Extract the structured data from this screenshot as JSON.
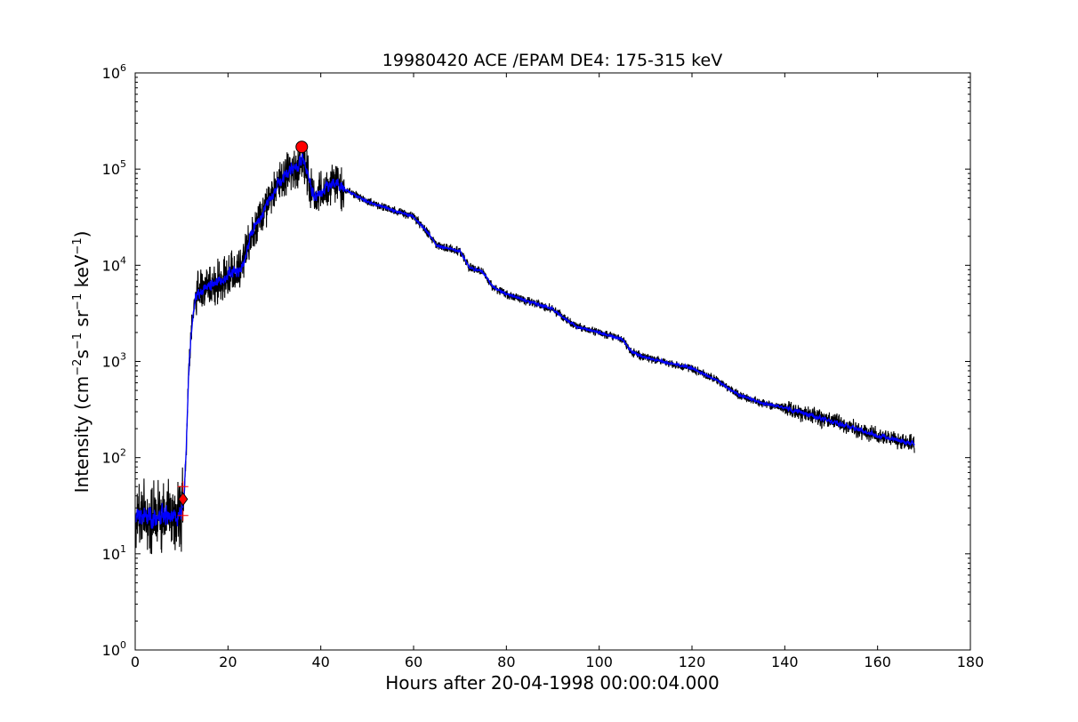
{
  "chart_data": {
    "type": "line",
    "title": "19980420 ACE /EPAM DE4: 175-315 keV",
    "xlabel": "Hours after 20-04-1998 00:00:04.000",
    "ylabel_parts": {
      "pre": "Intensity (cm",
      "exp1": "−2",
      "mid1": "s",
      "exp2": "−1",
      "mid2": " sr",
      "exp3": "−1",
      "mid3": " keV",
      "exp4": "−1",
      "post": ")"
    },
    "xlim": [
      0,
      180
    ],
    "ylim": [
      1,
      1000000
    ],
    "yscale": "log",
    "grid": false,
    "x_ticks": [
      "0",
      "20",
      "40",
      "60",
      "80",
      "100",
      "120",
      "140",
      "160",
      "180"
    ],
    "y_tick_mantissa": "10",
    "y_tick_exponents": [
      "0",
      "1",
      "2",
      "3",
      "4",
      "5",
      "6"
    ],
    "colors": {
      "raw": "#000000",
      "smoothed": "#0000ff",
      "markers": "#ff0000"
    },
    "series": [
      {
        "name": "",
        "style": "raw-black",
        "x": [
          0,
          2,
          4,
          6,
          8,
          10,
          10.5,
          11,
          11.5,
          12,
          13,
          15,
          17,
          19,
          21,
          23,
          25,
          27,
          29,
          31,
          33,
          35,
          36,
          37,
          38,
          39,
          40,
          41,
          43,
          45,
          50,
          55,
          60,
          63,
          65,
          70,
          72,
          75,
          77,
          80,
          90,
          95,
          100,
          105,
          107,
          110,
          120,
          125,
          130,
          135,
          140,
          145,
          150,
          155,
          160,
          165,
          168
        ],
        "y": [
          25,
          24,
          23,
          25,
          24,
          26,
          36,
          120,
          700,
          1800,
          4800,
          5800,
          6500,
          7000,
          8500,
          9000,
          21000,
          32000,
          48000,
          72000,
          92000,
          105000,
          130000,
          95000,
          58000,
          50000,
          55000,
          65000,
          70000,
          62000,
          46000,
          38000,
          32000,
          22000,
          16000,
          14000,
          9500,
          8500,
          6000,
          5000,
          3500,
          2300,
          2000,
          1700,
          1250,
          1100,
          850,
          650,
          450,
          370,
          330,
          280,
          240,
          200,
          170,
          150,
          140
        ]
      },
      {
        "name": "",
        "style": "smoothed-blue",
        "x": [
          0,
          2,
          4,
          6,
          8,
          10,
          10.5,
          11,
          11.5,
          12,
          13,
          15,
          17,
          19,
          21,
          23,
          25,
          27,
          29,
          31,
          33,
          35,
          36,
          37,
          38,
          39,
          40,
          41,
          43,
          45,
          50,
          55,
          60,
          63,
          65,
          70,
          72,
          75,
          77,
          80,
          90,
          95,
          100,
          105,
          107,
          110,
          120,
          125,
          130,
          135,
          140,
          145,
          150,
          155,
          160,
          165,
          168
        ],
        "y": [
          25,
          24,
          23,
          25,
          24,
          26,
          36,
          120,
          700,
          1800,
          4800,
          5800,
          6500,
          7000,
          8500,
          9000,
          21000,
          32000,
          48000,
          72000,
          92000,
          105000,
          130000,
          95000,
          58000,
          50000,
          55000,
          65000,
          70000,
          62000,
          46000,
          38000,
          32000,
          22000,
          16000,
          14000,
          9500,
          8500,
          6000,
          5000,
          3500,
          2300,
          2000,
          1700,
          1250,
          1100,
          850,
          650,
          450,
          370,
          330,
          280,
          240,
          200,
          170,
          150,
          140
        ]
      }
    ],
    "markers": [
      {
        "name": "peak-marker",
        "shape": "circle",
        "x": 35.9,
        "y": 170000,
        "color": "#ff0000"
      },
      {
        "name": "onset-marker",
        "shape": "diamond",
        "x": 10.3,
        "y": 37,
        "color": "#ff0000"
      },
      {
        "name": "onset-upper-cross",
        "shape": "plus",
        "x": 10.3,
        "y": 50,
        "color": "#ff0000"
      },
      {
        "name": "onset-lower-cross",
        "shape": "plus",
        "x": 10.3,
        "y": 25,
        "color": "#ff0000"
      }
    ]
  }
}
